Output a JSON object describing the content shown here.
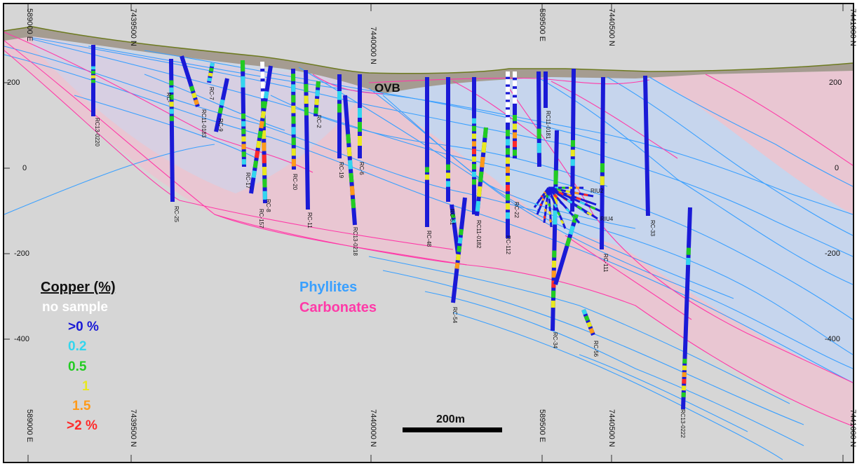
{
  "legend": {
    "title": "Copper (%)",
    "items": [
      {
        "label": "no sample",
        "color": "#ffffff"
      },
      {
        "label": ">0 %",
        "color": "#1a1ad6"
      },
      {
        "label": "0.2",
        "color": "#33d6ee"
      },
      {
        "label": "0.5",
        "color": "#22cc22"
      },
      {
        "label": "1",
        "color": "#e8e820"
      },
      {
        "label": "1.5",
        "color": "#ff9a1a"
      },
      {
        "label": ">2 %",
        "color": "#ff2a2a"
      }
    ]
  },
  "units": {
    "phyllites": {
      "label": "Phyllites",
      "color": "#3aa0ff"
    },
    "carbonates": {
      "label": "Carbonates",
      "color": "#ff3aa8"
    },
    "ovb": {
      "label": "OVB"
    }
  },
  "scale_bar": {
    "label": "200m"
  },
  "coords_top": [
    "589000 E",
    "7439500 N",
    "7440000 N",
    "589500 E",
    "7440500 N",
    "7441000 N"
  ],
  "coords_bottom": [
    "589000 E",
    "7439500 N",
    "7440000 N",
    "589500 E",
    "7440500 N",
    "7441000 N"
  ],
  "elevations": [
    "200",
    "0",
    "-200",
    "-400"
  ],
  "drillholes": [
    "RC13-0220",
    "RC-25",
    "RC-",
    "RC-7",
    "RC11-0183",
    "RC-9",
    "RC-17",
    "RC-157",
    "RC-8",
    "RC-20",
    "RC-11",
    "RC-2",
    "RC-19",
    "RC-6",
    "RC13-0218",
    "RC-48",
    "RC-54",
    "RC-51",
    "RC11-0182",
    "RC-112",
    "RC-22",
    "RC11-0181",
    "RC-34",
    "RC-56",
    "RC-111",
    "RC-33",
    "RC13-0222",
    "RIU2",
    "RIU4"
  ]
}
